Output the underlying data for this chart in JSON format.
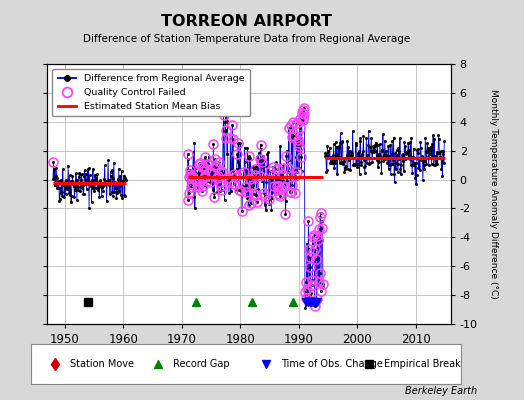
{
  "title": "TORREON AIRPORT",
  "subtitle": "Difference of Station Temperature Data from Regional Average",
  "ylabel_right": "Monthly Temperature Anomaly Difference (°C)",
  "ylim": [
    -10,
    8
  ],
  "xlim": [
    1947,
    2016
  ],
  "xticks": [
    1950,
    1960,
    1970,
    1980,
    1990,
    2000,
    2010
  ],
  "yticks": [
    -10,
    -8,
    -6,
    -4,
    -2,
    0,
    2,
    4,
    6,
    8
  ],
  "background_color": "#d8d8d8",
  "plot_bg_color": "#ffffff",
  "grid_color": "#b0b0b0",
  "line_color": "#0000cc",
  "dot_color": "#000000",
  "qc_color": "#ff44ff",
  "bias_color": "#ff0000",
  "attribution": "Berkeley Earth",
  "bias_segments": [
    {
      "xstart": 1948.0,
      "xend": 1960.5,
      "bias": -0.25
    },
    {
      "xstart": 1971.0,
      "xend": 1994.2,
      "bias": 0.15
    },
    {
      "xstart": 1994.5,
      "xend": 2015.0,
      "bias": 1.5
    }
  ],
  "record_gaps": [
    1972.5,
    1982.0,
    1989.0
  ],
  "empirical_breaks": [
    1954.0
  ],
  "time_of_obs_changes": [
    1991.3,
    1991.6,
    1991.9,
    1992.2,
    1992.5,
    1992.8,
    1993.1
  ],
  "seed": 42
}
